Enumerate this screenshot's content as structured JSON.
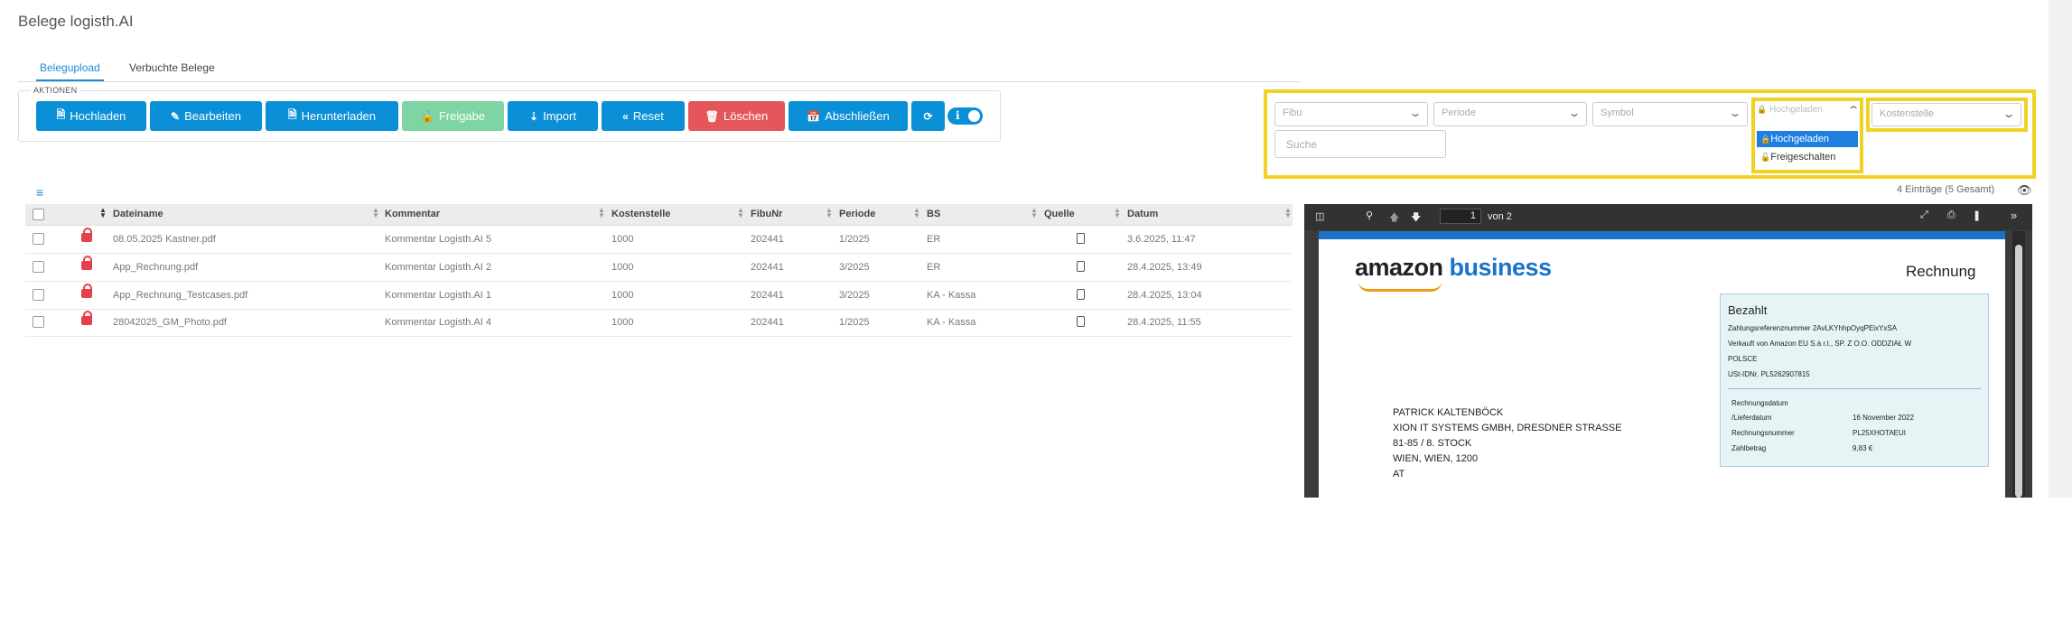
{
  "page": {
    "title": "Belege logisth.AI"
  },
  "tabs": [
    {
      "label": "Belegupload",
      "active": true
    },
    {
      "label": "Verbuchte Belege",
      "active": false
    }
  ],
  "actions": {
    "legend": "AKTIONEN",
    "buttons": [
      {
        "label": "Hochladen",
        "icon": "upload-file-icon",
        "color": "#0b8fd6"
      },
      {
        "label": "Bearbeiten",
        "icon": "edit-icon",
        "color": "#0b8fd6"
      },
      {
        "label": "Herunterladen",
        "icon": "download-file-icon",
        "color": "#0b8fd6"
      },
      {
        "label": "Freigabe",
        "icon": "unlock-icon",
        "color": "#7ed4a2"
      },
      {
        "label": "Import",
        "icon": "import-icon",
        "color": "#0b8fd6"
      },
      {
        "label": "Reset",
        "icon": "double-chevron-left-icon",
        "color": "#0b8fd6"
      },
      {
        "label": "Löschen",
        "icon": "trash-icon",
        "color": "#e5565a"
      },
      {
        "label": "Abschließen",
        "icon": "calendar-check-icon",
        "color": "#0b8fd6"
      }
    ],
    "refresh_icon": "refresh-icon",
    "info_toggle_on": true
  },
  "filters": {
    "fibu_placeholder": "Fibu",
    "periode_placeholder": "Periode",
    "symbol_placeholder": "Symbol",
    "status_placeholder": "Hochgeladen",
    "kostenstelle_placeholder": "Kostenstelle",
    "search_placeholder": "Suche",
    "status_options": [
      {
        "label": "Hochgeladen",
        "highlighted": true,
        "icon": "lock-icon"
      },
      {
        "label": "Freigeschalten",
        "highlighted": false,
        "icon": "unlock-icon"
      }
    ],
    "highlight_color": "#f0d225"
  },
  "table": {
    "count_text": "4 Einträge (5 Gesamt)",
    "columns": [
      "Dateiname",
      "Kommentar",
      "Kostenstelle",
      "FibuNr",
      "Periode",
      "BS",
      "Quelle",
      "Datum"
    ],
    "rows": [
      {
        "datei": "08.05.2025 Kastner.pdf",
        "kommentar": "Kommentar Logisth.AI 5",
        "kostenstelle": "1000",
        "fibunr": "202441",
        "periode": "1/2025",
        "bs": "ER",
        "quelle": "file-icon",
        "datum": "3.6.2025, 11:47"
      },
      {
        "datei": "App_Rechnung.pdf",
        "kommentar": "Kommentar Logisth.AI 2",
        "kostenstelle": "1000",
        "fibunr": "202441",
        "periode": "3/2025",
        "bs": "ER",
        "quelle": "mobile-icon",
        "datum": "28.4.2025, 13:49"
      },
      {
        "datei": "App_Rechnung_Testcases.pdf",
        "kommentar": "Kommentar Logisth.AI 1",
        "kostenstelle": "1000",
        "fibunr": "202441",
        "periode": "3/2025",
        "bs": "KA - Kassa",
        "quelle": "mobile-icon",
        "datum": "28.4.2025, 13:04"
      },
      {
        "datei": "28042025_GM_Photo.pdf",
        "kommentar": "Kommentar Logisth.AI 4",
        "kostenstelle": "1000",
        "fibunr": "202441",
        "periode": "1/2025",
        "bs": "KA - Kassa",
        "quelle": "mobile-icon",
        "datum": "28.4.2025, 11:55"
      }
    ]
  },
  "pdf": {
    "page_number": "1",
    "page_total": "von 2",
    "logo_amazon": "amazon",
    "logo_business": "business",
    "doc_title": "Rechnung",
    "address": [
      "PATRICK KALTENBÖCK",
      "XION IT SYSTEMS GMBH, DRESDNER STRASSE",
      "81-85 / 8. STOCK",
      "WIEN, WIEN, 1200",
      "AT"
    ],
    "paid_title": "Bezahlt",
    "paid_lines": [
      "Zahlungsreferenznummer 2AvLKYhhpOyqPEixYxSA",
      "Verkauft von Amazon EU S.à r.l., SP. Z O.O. ODDZIAŁ W",
      "POLSCE",
      "USt-IDNr. PL5262907815"
    ],
    "details": [
      {
        "label": "Rechnungsdatum",
        "value": ""
      },
      {
        "label": "/Lieferdatum",
        "value": "16 November 2022"
      },
      {
        "label": "Rechnungsnummer",
        "value": "PL25XHOTAEUI"
      },
      {
        "label": "Zahlbetrag",
        "value": "9,83 €"
      }
    ]
  }
}
